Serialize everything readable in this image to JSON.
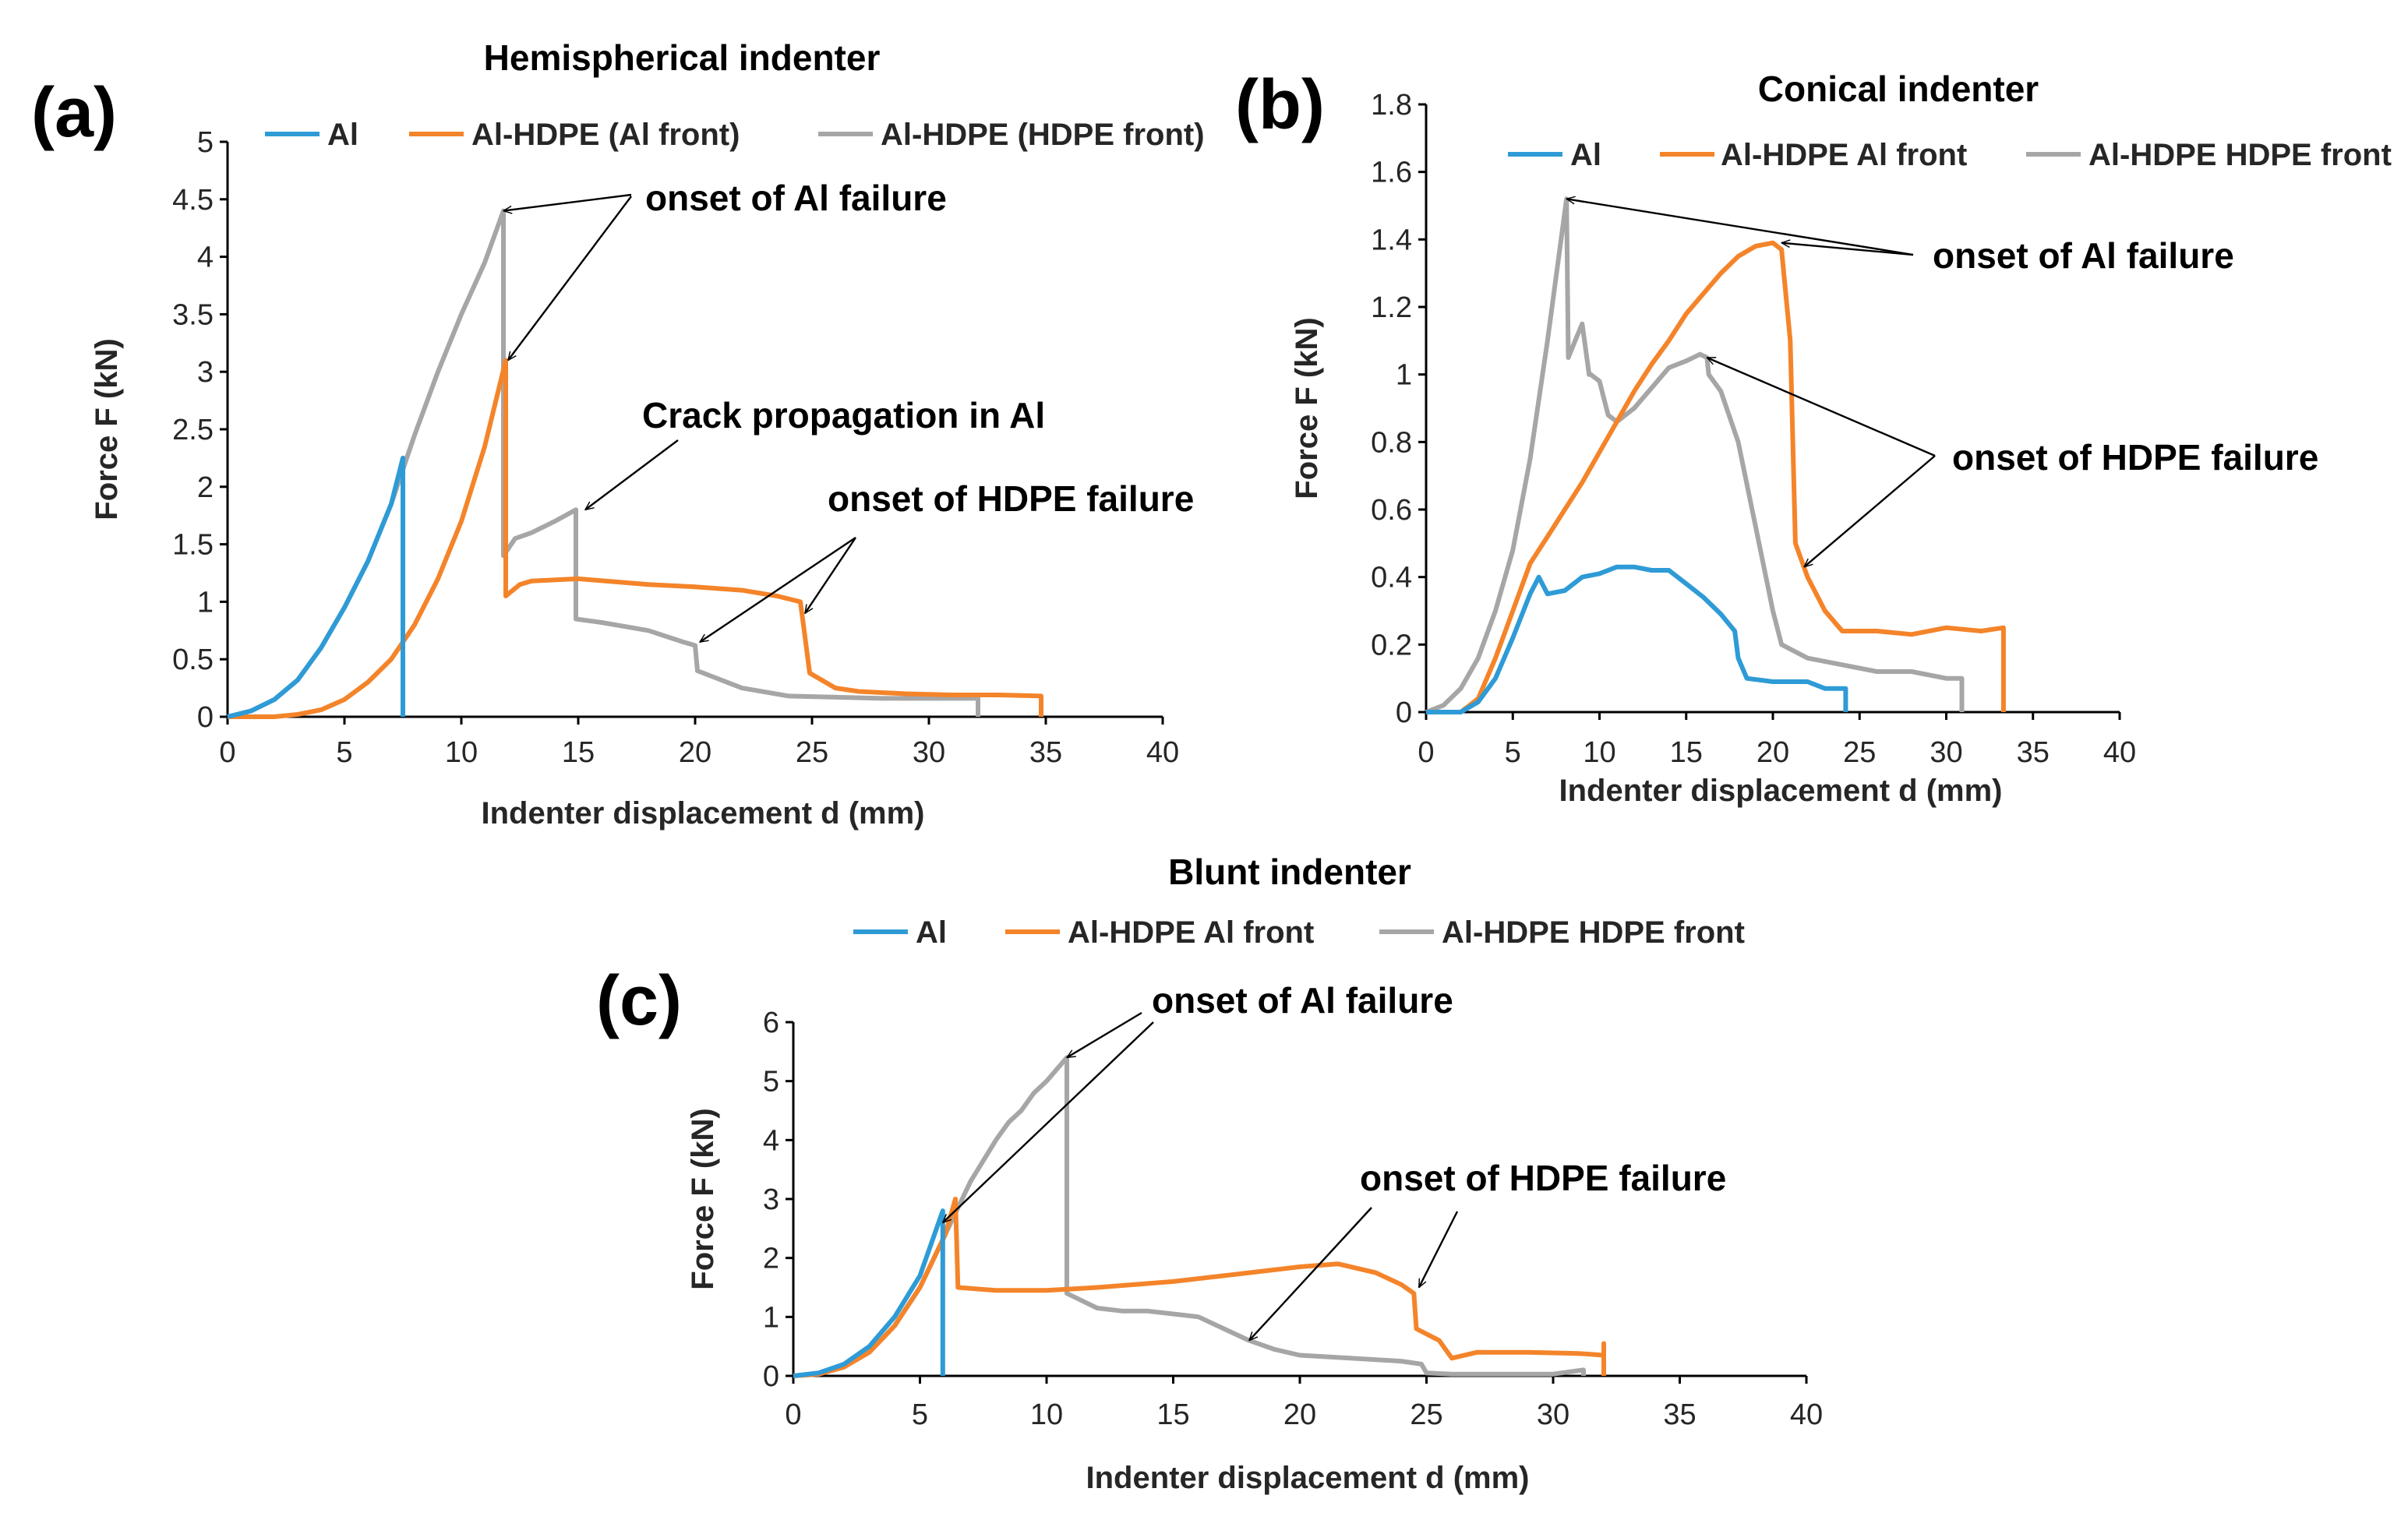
{
  "colors": {
    "al": "#2E9BD6",
    "front_al": "#F4842A",
    "front_hdpe": "#A6A6A6"
  },
  "panels": [
    {
      "letter": "(a)",
      "title": "Hemispherical indenter",
      "legend": [
        "Al",
        "Al-HDPE (Al front)",
        "Al-HDPE (HDPE front)"
      ],
      "annotations": [
        {
          "text": "onset of Al failure",
          "targets": [
            [
              11.8,
              4.4
            ],
            [
              12.0,
              3.1
            ]
          ]
        },
        {
          "text": "Crack propagation in Al",
          "targets": [
            [
              15.3,
              1.8
            ]
          ]
        },
        {
          "text": "onset of HDPE failure",
          "targets": [
            [
              20.2,
              0.65
            ],
            [
              24.7,
              0.9
            ]
          ]
        }
      ],
      "chart_data": {
        "type": "line",
        "xlabel": "Indenter displacement d (mm)",
        "ylabel": "Force F (kN)",
        "xlim": [
          0,
          40
        ],
        "ylim": [
          0,
          5
        ],
        "xticks": [
          "0",
          "5",
          "10",
          "15",
          "20",
          "25",
          "30",
          "35",
          "40"
        ],
        "yticks": [
          "0",
          "0.5",
          "1",
          "1.5",
          "2",
          "2.5",
          "3",
          "3.5",
          "4",
          "4.5",
          "5"
        ],
        "legend_position": "top",
        "series": [
          {
            "name": "Al",
            "color_key": "al",
            "x": [
              0,
              1,
              2,
              3,
              4,
              5,
              6,
              7,
              7.5,
              7.5
            ],
            "y": [
              0,
              0.05,
              0.15,
              0.32,
              0.6,
              0.95,
              1.35,
              1.85,
              2.25,
              0
            ]
          },
          {
            "name": "Al-HDPE (Al front)",
            "color_key": "front_al",
            "x": [
              0,
              2,
              3,
              4,
              5,
              6,
              7,
              8,
              9,
              10,
              11,
              11.9,
              11.9,
              12.5,
              13,
              15,
              18,
              20,
              22,
              23.5,
              24.5,
              24.6,
              24.9,
              26,
              27,
              29,
              31,
              33,
              34.8,
              34.8
            ],
            "y": [
              0,
              0,
              0.02,
              0.06,
              0.15,
              0.3,
              0.5,
              0.8,
              1.2,
              1.7,
              2.35,
              3.1,
              1.05,
              1.15,
              1.18,
              1.2,
              1.15,
              1.13,
              1.1,
              1.05,
              1.0,
              0.85,
              0.38,
              0.25,
              0.22,
              0.2,
              0.19,
              0.19,
              0.18,
              0
            ]
          },
          {
            "name": "Al-HDPE (HDPE front)",
            "color_key": "front_hdpe",
            "x": [
              0,
              1,
              2,
              3,
              4,
              5,
              6,
              7,
              8,
              9,
              10,
              11,
              11.8,
              11.8,
              12.3,
              13,
              14,
              14.9,
              14.9,
              16,
              18,
              19.5,
              20,
              20.1,
              22,
              24,
              26,
              28,
              30,
              32.1,
              32.1
            ],
            "y": [
              0,
              0.05,
              0.15,
              0.32,
              0.6,
              0.95,
              1.35,
              1.85,
              2.45,
              3.0,
              3.5,
              3.95,
              4.4,
              1.4,
              1.55,
              1.6,
              1.7,
              1.8,
              0.85,
              0.82,
              0.75,
              0.65,
              0.62,
              0.4,
              0.25,
              0.18,
              0.17,
              0.16,
              0.16,
              0.16,
              0
            ]
          }
        ]
      }
    },
    {
      "letter": "(b)",
      "title": "Conical indenter",
      "legend": [
        "Al",
        "Al-HDPE Al front",
        "Al-HDPE HDPE front"
      ],
      "annotations": [
        {
          "text": "onset of Al failure",
          "targets": [
            [
              8.1,
              1.52
            ],
            [
              20.5,
              1.39
            ]
          ]
        },
        {
          "text": "onset of HDPE failure",
          "targets": [
            [
              16.2,
              1.05
            ],
            [
              21.8,
              0.43
            ]
          ]
        }
      ],
      "chart_data": {
        "type": "line",
        "xlabel": "Indenter displacement d (mm)",
        "ylabel": "Force F (kN)",
        "xlim": [
          0,
          40
        ],
        "ylim": [
          0,
          1.8
        ],
        "xticks": [
          "0",
          "5",
          "10",
          "15",
          "20",
          "25",
          "30",
          "35",
          "40"
        ],
        "yticks": [
          "0",
          "0.2",
          "0.4",
          "0.6",
          "0.8",
          "1",
          "1.2",
          "1.4",
          "1.6",
          "1.8"
        ],
        "legend_position": "top",
        "series": [
          {
            "name": "Al",
            "color_key": "al",
            "x": [
              0,
              2,
              3,
              4,
              5,
              6,
              6.5,
              7,
              8,
              9,
              10,
              11,
              12,
              13,
              14,
              15,
              16,
              17,
              17.8,
              18,
              18.5,
              20,
              22,
              23,
              24.2,
              24.2
            ],
            "y": [
              0,
              0,
              0.03,
              0.1,
              0.22,
              0.35,
              0.4,
              0.35,
              0.36,
              0.4,
              0.41,
              0.43,
              0.43,
              0.42,
              0.42,
              0.38,
              0.34,
              0.29,
              0.24,
              0.16,
              0.1,
              0.09,
              0.09,
              0.07,
              0.07,
              0
            ]
          },
          {
            "name": "Al-HDPE Al front",
            "color_key": "front_al",
            "x": [
              0,
              2,
              3,
              4,
              5,
              6,
              7,
              8,
              9,
              10,
              11,
              12,
              13,
              14,
              15,
              16,
              17,
              18,
              19,
              20,
              20.5,
              21,
              21.3,
              22,
              23,
              24,
              26,
              28,
              30,
              32,
              33.3,
              33.3
            ],
            "y": [
              0,
              0,
              0.04,
              0.16,
              0.3,
              0.44,
              0.52,
              0.6,
              0.68,
              0.77,
              0.86,
              0.95,
              1.03,
              1.1,
              1.18,
              1.24,
              1.3,
              1.35,
              1.38,
              1.39,
              1.37,
              1.1,
              0.5,
              0.4,
              0.3,
              0.24,
              0.24,
              0.23,
              0.25,
              0.24,
              0.25,
              0
            ]
          },
          {
            "name": "Al-HDPE HDPE front",
            "color_key": "front_hdpe",
            "x": [
              0,
              1,
              2,
              3,
              4,
              5,
              6,
              7,
              8.1,
              8.2,
              8.6,
              9,
              9.4,
              9.5,
              10,
              10.5,
              11,
              12,
              13,
              14,
              15,
              15.8,
              16.2,
              16.3,
              17,
              18,
              19,
              20,
              20.5,
              22,
              24,
              26,
              28,
              30,
              30.9,
              30.9
            ],
            "y": [
              0,
              0.02,
              0.07,
              0.16,
              0.3,
              0.48,
              0.75,
              1.1,
              1.52,
              1.05,
              1.1,
              1.15,
              1.0,
              1.0,
              0.98,
              0.88,
              0.86,
              0.9,
              0.96,
              1.02,
              1.04,
              1.06,
              1.05,
              1.0,
              0.95,
              0.8,
              0.55,
              0.3,
              0.2,
              0.16,
              0.14,
              0.12,
              0.12,
              0.1,
              0.1,
              0
            ]
          }
        ]
      }
    },
    {
      "letter": "(c)",
      "title": "Blunt indenter",
      "legend": [
        "Al",
        "Al-HDPE Al front",
        "Al-HDPE HDPE front"
      ],
      "annotations": [
        {
          "text": "onset of Al failure",
          "targets": [
            [
              10.8,
              5.4
            ],
            [
              5.9,
              2.6
            ]
          ]
        },
        {
          "text": "onset of HDPE failure",
          "targets": [
            [
              18.0,
              0.6
            ],
            [
              24.7,
              1.5
            ]
          ]
        }
      ],
      "chart_data": {
        "type": "line",
        "xlabel": "Indenter displacement d (mm)",
        "ylabel": "Force F (kN)",
        "xlim": [
          0,
          40
        ],
        "ylim": [
          0,
          6
        ],
        "xticks": [
          "0",
          "5",
          "10",
          "15",
          "20",
          "25",
          "30",
          "35",
          "40"
        ],
        "yticks": [
          "0",
          "1",
          "2",
          "3",
          "4",
          "5",
          "6"
        ],
        "legend_position": "top",
        "series": [
          {
            "name": "Al",
            "color_key": "al",
            "x": [
              0,
              1,
              2,
              3,
              4,
              5,
              5.9,
              5.9
            ],
            "y": [
              0,
              0.05,
              0.2,
              0.5,
              1.0,
              1.7,
              2.8,
              0
            ]
          },
          {
            "name": "Al-HDPE Al front",
            "color_key": "front_al",
            "x": [
              0,
              1,
              2,
              3,
              4,
              5,
              6,
              6.4,
              6.5,
              8,
              10,
              12,
              15,
              18,
              20,
              21.5,
              23,
              24,
              24.5,
              24.6,
              25.5,
              26,
              27,
              29,
              31,
              32,
              32,
              32
            ],
            "y": [
              0,
              0.03,
              0.15,
              0.4,
              0.85,
              1.5,
              2.4,
              3.0,
              1.5,
              1.45,
              1.45,
              1.5,
              1.6,
              1.75,
              1.85,
              1.9,
              1.75,
              1.55,
              1.4,
              0.8,
              0.6,
              0.3,
              0.4,
              0.4,
              0.38,
              0.35,
              0.55,
              0
            ]
          },
          {
            "name": "Al-HDPE HDPE front",
            "color_key": "front_hdpe",
            "x": [
              0,
              1,
              2,
              3,
              4,
              5,
              6,
              7,
              8,
              8.5,
              9,
              9.5,
              10,
              10.8,
              10.8,
              12,
              13,
              14,
              15,
              16,
              17,
              18,
              19,
              20,
              22,
              24,
              24.8,
              25,
              26,
              28,
              30,
              31.2,
              31.2
            ],
            "y": [
              0,
              0.03,
              0.15,
              0.4,
              0.85,
              1.5,
              2.4,
              3.3,
              4.0,
              4.3,
              4.5,
              4.8,
              5.0,
              5.4,
              1.4,
              1.15,
              1.1,
              1.1,
              1.05,
              1.0,
              0.8,
              0.6,
              0.45,
              0.35,
              0.3,
              0.25,
              0.2,
              0.05,
              0.03,
              0.03,
              0.03,
              0.1,
              0
            ]
          }
        ]
      }
    }
  ]
}
